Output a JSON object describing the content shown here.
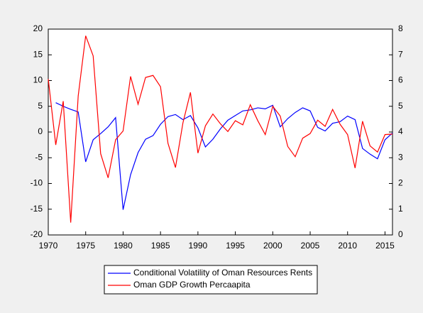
{
  "chart_data": {
    "type": "line",
    "x": [
      1970,
      1971,
      1972,
      1973,
      1974,
      1975,
      1976,
      1977,
      1978,
      1979,
      1980,
      1981,
      1982,
      1983,
      1984,
      1985,
      1986,
      1987,
      1988,
      1989,
      1990,
      1991,
      1992,
      1993,
      1994,
      1995,
      1996,
      1997,
      1998,
      1999,
      2000,
      2001,
      2002,
      2003,
      2004,
      2005,
      2006,
      2007,
      2008,
      2009,
      2010,
      2011,
      2012,
      2013,
      2014,
      2015,
      2016
    ],
    "series": [
      {
        "name": "Conditional Volatility of Oman Resources Rents",
        "color": "#0000ff",
        "axis": "y2",
        "values": [
          null,
          5.14,
          5.0,
          4.88,
          4.78,
          2.84,
          3.7,
          3.94,
          4.2,
          4.56,
          0.98,
          2.34,
          3.2,
          3.72,
          3.86,
          4.3,
          4.6,
          4.68,
          4.48,
          4.64,
          4.16,
          3.42,
          3.72,
          4.12,
          4.46,
          4.64,
          4.82,
          4.86,
          4.94,
          4.9,
          5.04,
          4.2,
          4.52,
          4.76,
          4.94,
          4.82,
          4.18,
          4.04,
          4.34,
          4.4,
          4.62,
          4.48,
          3.36,
          3.14,
          2.96,
          3.7,
          3.96
        ]
      },
      {
        "name": "Oman GDP Growth Percaapita",
        "color": "#ff0000",
        "values": [
          10.3,
          -2.5,
          6.0,
          -17.6,
          7.0,
          18.7,
          14.8,
          -4.2,
          -8.9,
          -1.5,
          0.2,
          10.8,
          5.4,
          10.6,
          11.0,
          8.8,
          -2.2,
          -6.9,
          1.8,
          7.7,
          -4.1,
          1.2,
          3.5,
          1.6,
          0.1,
          2.2,
          1.4,
          5.3,
          2.2,
          -0.5,
          5.0,
          3.1,
          -2.8,
          -4.8,
          -1.2,
          -0.3,
          2.3,
          1.1,
          4.4,
          1.5,
          -0.5,
          -7.0,
          2.1,
          -2.7,
          -3.9,
          -0.5,
          -0.4
        ]
      }
    ],
    "xlim": [
      1970,
      2016
    ],
    "xticks": [
      1970,
      1975,
      1980,
      1985,
      1990,
      1995,
      2000,
      2005,
      2010,
      2015
    ],
    "ylim": [
      -20,
      20
    ],
    "yticks": [
      -20,
      -15,
      -10,
      -5,
      0,
      5,
      10,
      15,
      20
    ],
    "y2lim": [
      0,
      8
    ],
    "y2ticks": [
      0,
      1,
      2,
      3,
      4,
      5,
      6,
      7,
      8
    ]
  }
}
